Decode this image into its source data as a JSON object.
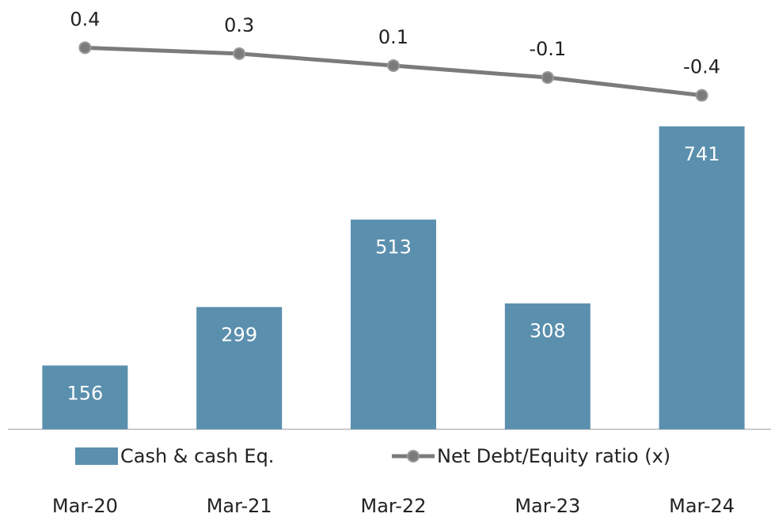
{
  "chart_data": {
    "type": "bar-line",
    "categories": [
      "Mar-20",
      "Mar-21",
      "Mar-22",
      "Mar-23",
      "Mar-24"
    ],
    "series": [
      {
        "name": "Cash & cash Eq.",
        "type": "bar",
        "color": "#5b8fae",
        "values": [
          156,
          299,
          513,
          308,
          741
        ]
      },
      {
        "name": "Net Debt/Equity ratio (x)",
        "type": "line",
        "axis": "y2",
        "color": "#7b7b7b",
        "values": [
          0.4,
          0.3,
          0.1,
          -0.1,
          -0.4
        ]
      }
    ],
    "ylim": [
      0,
      1050
    ],
    "y2lim": [
      -6,
      1.2
    ],
    "grid": false
  }
}
